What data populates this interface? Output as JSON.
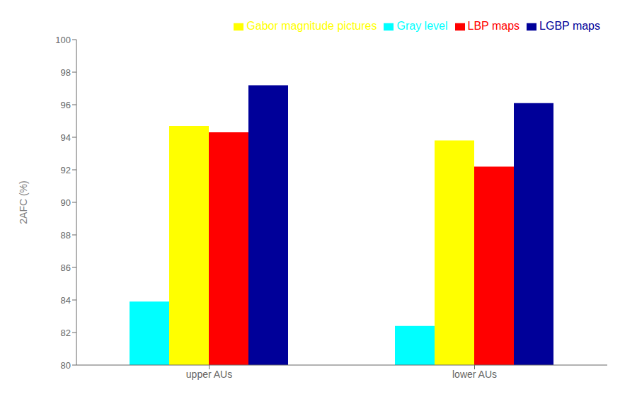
{
  "chart_data": {
    "type": "bar",
    "categories": [
      "upper AUs",
      "lower AUs"
    ],
    "series": [
      {
        "name": "Gray level",
        "color": "#00FFFF",
        "values": [
          83.9,
          82.4
        ]
      },
      {
        "name": "Gabor magnitude pictures",
        "color": "#FFFF00",
        "values": [
          94.7,
          93.8
        ]
      },
      {
        "name": "LBP maps",
        "color": "#FF0000",
        "values": [
          94.3,
          92.2
        ]
      },
      {
        "name": "LGBP maps",
        "color": "#000099",
        "values": [
          97.2,
          96.1
        ]
      }
    ],
    "ylabel": "2AFC (%)",
    "ylim": [
      80,
      100
    ],
    "yticks": [
      80,
      82,
      84,
      86,
      88,
      90,
      92,
      94,
      96,
      98,
      100
    ],
    "grid": false,
    "legend": "upper right"
  }
}
